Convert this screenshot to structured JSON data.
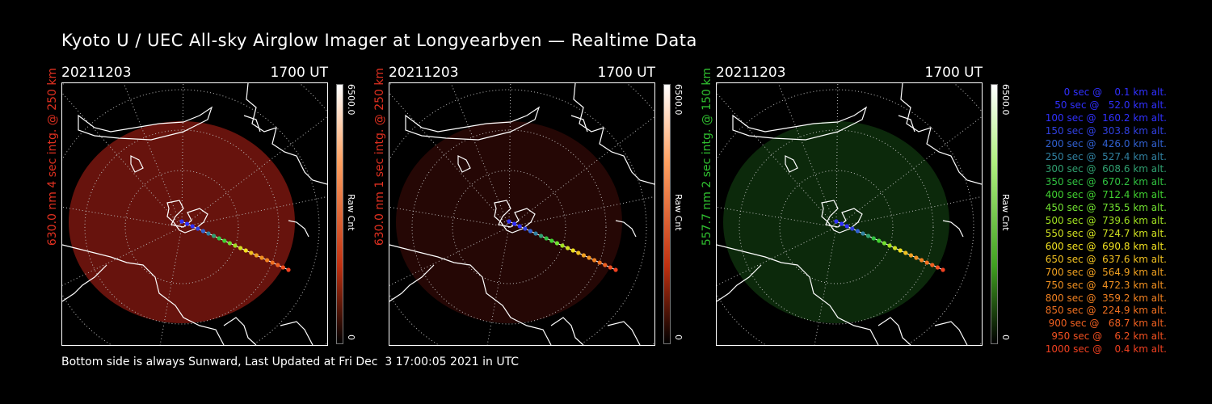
{
  "title": "Kyoto U / UEC All-sky Airglow Imager at Longyearbyen — Realtime Data",
  "panels": [
    {
      "date": "20211203",
      "time": "1700 UT",
      "ylabel": "630.0 nm 4 sec intg. @ 250 km",
      "label_color": "#e03020",
      "glow_color": "#8a1a12",
      "glow_opacity": 0.75,
      "cbar_max": "6500.0",
      "cbar_min": "0",
      "cbar_unit": "Raw Cnt",
      "cbar_color": "red"
    },
    {
      "date": "20211203",
      "time": "1700 UT",
      "ylabel": "630.0 nm 1 sec intg. @ 250 km",
      "label_color": "#e03020",
      "glow_color": "#6a140e",
      "glow_opacity": 0.35,
      "cbar_max": "6500.0",
      "cbar_min": "0",
      "cbar_unit": "Raw Cnt",
      "cbar_color": "red"
    },
    {
      "date": "20211203",
      "time": "1700 UT",
      "ylabel": "557.7 nm 2 sec intg. @ 150 km",
      "label_color": "#30c030",
      "glow_color": "#1a5a18",
      "glow_opacity": 0.45,
      "cbar_max": "6500.0",
      "cbar_min": "0",
      "cbar_unit": "Raw Cnt",
      "cbar_color": "green"
    }
  ],
  "legend": [
    {
      "text": "  0 sec @    0.1 km alt.",
      "color": "#3030ff"
    },
    {
      "text": " 50 sec @   52.0 km alt.",
      "color": "#3030ff"
    },
    {
      "text": "100 sec @  160.2 km alt.",
      "color": "#3030ff"
    },
    {
      "text": "150 sec @  303.8 km alt.",
      "color": "#3040e0"
    },
    {
      "text": "200 sec @  426.0 km alt.",
      "color": "#3060d0"
    },
    {
      "text": "250 sec @  527.4 km alt.",
      "color": "#3080a0"
    },
    {
      "text": "300 sec @  608.6 km alt.",
      "color": "#30a070"
    },
    {
      "text": "350 sec @  670.2 km alt.",
      "color": "#30c040"
    },
    {
      "text": "400 sec @  712.4 km alt.",
      "color": "#40d030"
    },
    {
      "text": "450 sec @  735.5 km alt.",
      "color": "#70e030"
    },
    {
      "text": "500 sec @  739.6 km alt.",
      "color": "#a0e020"
    },
    {
      "text": "550 sec @  724.7 km alt.",
      "color": "#d0e020"
    },
    {
      "text": "600 sec @  690.8 km alt.",
      "color": "#f0e020"
    },
    {
      "text": "650 sec @  637.6 km alt.",
      "color": "#f0c020"
    },
    {
      "text": "700 sec @  564.9 km alt.",
      "color": "#f0a020"
    },
    {
      "text": "750 sec @  472.3 km alt.",
      "color": "#f09020"
    },
    {
      "text": "800 sec @  359.2 km alt.",
      "color": "#f08020"
    },
    {
      "text": "850 sec @  224.9 km alt.",
      "color": "#f07020"
    },
    {
      "text": "900 sec @   68.7 km alt.",
      "color": "#f06020"
    },
    {
      "text": "950 sec @    6.2 km alt.",
      "color": "#f05020"
    },
    {
      "text": "1000 sec @    0.4 km alt.",
      "color": "#f04020"
    }
  ],
  "footer": "Bottom side is always Sunward, Last Updated at Fri Dec  3 17:00:05 2021 in UTC"
}
